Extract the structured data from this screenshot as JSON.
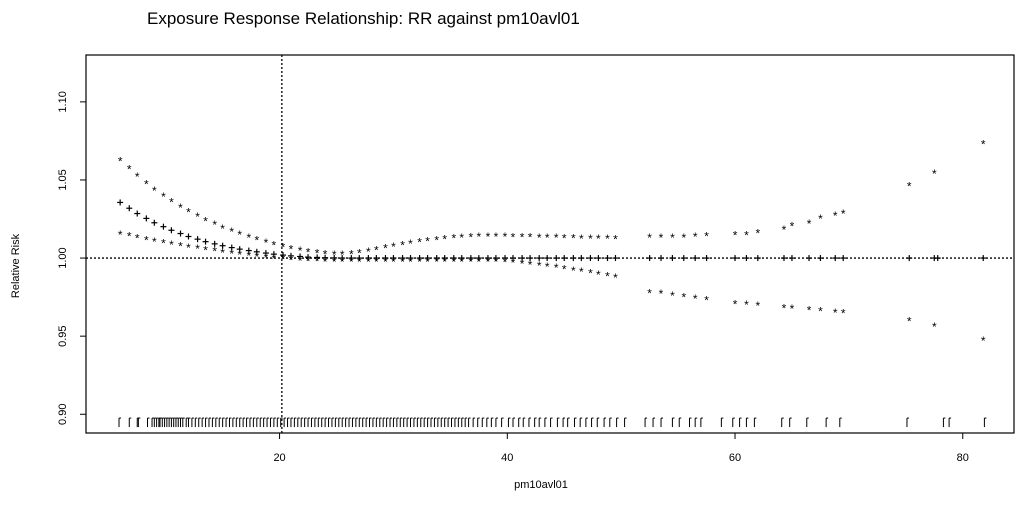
{
  "chart_data": {
    "type": "scatter",
    "title": "Exposure Response Relationship: RR against pm10avl01",
    "xlabel": "pm10avl01",
    "ylabel": "Relative Risk",
    "xlim": [
      3.0,
      84.5
    ],
    "ylim": [
      0.888,
      1.13
    ],
    "x_ticks": [
      20,
      40,
      60,
      80
    ],
    "x_tick_labels": [
      "20",
      "40",
      "60",
      "80"
    ],
    "y_ticks": [
      0.9,
      0.95,
      1.0,
      1.05,
      1.1
    ],
    "y_tick_labels": [
      "0.90",
      "0.95",
      "1.00",
      "1.05",
      "1.10"
    ],
    "grid": false,
    "legend": "none",
    "reference_lines": {
      "horizontal_y": 1.0,
      "vertical_x": 20.2
    },
    "rug_x": [
      5.9,
      6.8,
      7.5,
      7.6,
      8.4,
      8.8,
      9.0,
      9.2,
      9.4,
      9.5,
      9.7,
      9.9,
      10.1,
      10.3,
      10.5,
      10.7,
      10.9,
      11.1,
      11.3,
      11.5,
      11.8,
      12.0,
      12.3,
      12.6,
      12.9,
      13.2,
      13.5,
      13.8,
      14.1,
      14.4,
      14.7,
      15.0,
      15.3,
      15.6,
      15.9,
      16.2,
      16.5,
      16.8,
      17.1,
      17.4,
      17.7,
      18.0,
      18.3,
      18.6,
      18.9,
      19.2,
      19.5,
      19.8,
      20.1,
      20.4,
      20.7,
      21.0,
      21.3,
      21.6,
      21.9,
      22.2,
      22.5,
      22.8,
      23.1,
      23.4,
      23.7,
      24.0,
      24.3,
      24.6,
      24.9,
      25.2,
      25.5,
      25.8,
      26.1,
      26.4,
      26.7,
      27.0,
      27.3,
      27.6,
      27.9,
      28.2,
      28.5,
      28.8,
      29.1,
      29.4,
      29.7,
      30.0,
      30.3,
      30.6,
      30.9,
      31.2,
      31.5,
      31.8,
      32.1,
      32.4,
      32.7,
      33.0,
      33.3,
      33.6,
      33.9,
      34.2,
      34.5,
      34.8,
      35.1,
      35.4,
      35.7,
      36.0,
      36.3,
      36.6,
      37.0,
      37.4,
      37.8,
      38.2,
      38.6,
      39.0,
      39.5,
      40.1,
      40.5,
      41.0,
      41.4,
      41.9,
      42.4,
      42.8,
      43.3,
      43.8,
      44.4,
      44.9,
      45.3,
      45.9,
      46.4,
      46.9,
      47.4,
      47.9,
      48.5,
      49.0,
      49.6,
      50.3,
      52.1,
      52.8,
      53.5,
      54.5,
      55.1,
      56.0,
      56.5,
      57.0,
      58.8,
      59.8,
      60.4,
      61.0,
      61.7,
      64.1,
      64.8,
      66.3,
      68.0,
      69.2,
      75.1,
      78.3,
      78.8,
      81.9
    ],
    "series": [
      {
        "marker": "+",
        "x": [
          6.0,
          6.8,
          7.5,
          8.3,
          9.0,
          9.8,
          10.5,
          11.3,
          12.0,
          12.8,
          13.5,
          14.3,
          15.0,
          15.8,
          16.5,
          17.3,
          18.0,
          18.8,
          19.5,
          20.3,
          21.0,
          21.8,
          22.5,
          23.3,
          24.0,
          24.8,
          25.5,
          26.3,
          27.0,
          27.8,
          28.5,
          29.3,
          30.0,
          30.8,
          31.5,
          32.3,
          33.0,
          33.8,
          34.5,
          35.3,
          36.0,
          36.8,
          37.5,
          38.3,
          39.0,
          39.8,
          40.5,
          41.3,
          42.0,
          42.8,
          43.5,
          44.3,
          45.0,
          45.8,
          46.5,
          47.3,
          48.0,
          48.8,
          49.5,
          52.5,
          53.5,
          54.5,
          55.5,
          56.5,
          57.5,
          60.0,
          61.0,
          62.0,
          64.3,
          65.0,
          66.5,
          67.5,
          68.8,
          69.5,
          75.3,
          77.5,
          77.8,
          81.8
        ],
        "y": [
          1.0356,
          1.0319,
          1.0285,
          1.0254,
          1.0226,
          1.0201,
          1.0178,
          1.0157,
          1.0138,
          1.0121,
          1.0105,
          1.0091,
          1.0079,
          1.0067,
          1.0057,
          1.0048,
          1.004,
          1.0032,
          1.0025,
          1.0019,
          1.0014,
          1.001,
          1.0006,
          1.0004,
          1.0002,
          1.0001,
          1.0,
          1.0,
          1.0,
          1.0,
          1.0,
          1.0,
          1.0,
          1.0,
          1.0,
          1.0,
          1.0,
          1.0,
          1.0,
          1.0,
          1.0,
          1.0,
          1.0,
          1.0,
          1.0,
          1.0,
          1.0,
          1.0,
          1.0,
          1.0,
          1.0,
          1.0,
          1.0,
          1.0,
          1.0,
          1.0,
          1.0,
          1.0,
          1.0,
          1.0,
          1.0,
          1.0,
          1.0,
          1.0,
          1.0,
          1.0,
          1.0,
          1.0,
          1.0,
          1.0,
          1.0,
          1.0,
          1.0,
          1.0,
          1.0,
          1.0,
          1.0,
          1.0
        ]
      },
      {
        "marker": "*",
        "x": [
          6.0,
          6.8,
          7.5,
          8.3,
          9.0,
          9.8,
          10.5,
          11.3,
          12.0,
          12.8,
          13.5,
          14.3,
          15.0,
          15.8,
          16.5,
          17.3,
          18.0,
          18.8,
          19.5,
          20.3,
          21.0,
          21.8,
          22.5,
          23.3,
          24.0,
          24.8,
          25.5,
          26.3,
          27.0,
          27.8,
          28.5,
          29.3,
          30.0,
          30.8,
          31.5,
          32.3,
          33.0,
          33.8,
          34.5,
          35.3,
          36.0,
          36.8,
          37.5,
          38.3,
          39.0,
          39.8,
          40.5,
          41.3,
          42.0,
          42.8,
          43.5,
          44.3,
          45.0,
          45.8,
          46.5,
          47.3,
          48.0,
          48.8,
          49.5,
          52.5,
          53.5,
          54.5,
          55.5,
          56.5,
          57.5,
          60.0,
          61.0,
          62.0,
          64.3,
          65.0,
          66.5,
          67.5,
          68.8,
          69.5,
          75.3,
          77.5,
          81.8
        ],
        "y": [
          1.0625,
          1.0573,
          1.0524,
          1.0478,
          1.0436,
          1.0397,
          1.0361,
          1.0328,
          1.0297,
          1.0268,
          1.0241,
          1.0217,
          1.0194,
          1.0173,
          1.0153,
          1.0135,
          1.0118,
          1.0103,
          1.0088,
          1.0074,
          1.0061,
          1.005,
          1.0041,
          1.0034,
          1.0029,
          1.0026,
          1.0027,
          1.003,
          1.0037,
          1.0046,
          1.0056,
          1.0067,
          1.0077,
          1.0087,
          1.0096,
          1.0105,
          1.0113,
          1.012,
          1.0126,
          1.0131,
          1.0135,
          1.0138,
          1.014,
          1.0141,
          1.0141,
          1.014,
          1.0139,
          1.0138,
          1.0137,
          1.0136,
          1.0135,
          1.0134,
          1.0133,
          1.0132,
          1.013,
          1.0129,
          1.0128,
          1.0127,
          1.0126,
          1.0135,
          1.0135,
          1.0135,
          1.0135,
          1.014,
          1.0145,
          1.015,
          1.015,
          1.0165,
          1.0185,
          1.021,
          1.0225,
          1.0255,
          1.0275,
          1.029,
          1.0465,
          1.0545,
          1.0735
        ]
      },
      {
        "marker": "*",
        "x": [
          6.0,
          6.8,
          7.5,
          8.3,
          9.0,
          9.8,
          10.5,
          11.3,
          12.0,
          12.8,
          13.5,
          14.3,
          15.0,
          15.8,
          16.5,
          17.3,
          18.0,
          18.8,
          19.5,
          20.3,
          21.0,
          21.8,
          22.5,
          23.3,
          24.0,
          24.8,
          25.5,
          26.3,
          27.0,
          27.8,
          28.5,
          29.3,
          30.0,
          30.8,
          31.5,
          32.3,
          33.0,
          33.8,
          34.5,
          35.3,
          36.0,
          36.8,
          37.5,
          38.3,
          39.0,
          39.8,
          40.5,
          41.3,
          42.0,
          42.8,
          43.5,
          44.3,
          45.0,
          45.8,
          46.5,
          47.3,
          48.0,
          48.8,
          49.5,
          52.5,
          53.5,
          54.5,
          55.5,
          56.5,
          57.5,
          60.0,
          61.0,
          62.0,
          64.3,
          65.0,
          66.5,
          67.5,
          68.8,
          69.5,
          75.3,
          77.5,
          81.8
        ],
        "y": [
          1.0155,
          1.0143,
          1.0131,
          1.012,
          1.011,
          1.01,
          1.009,
          1.0081,
          1.0072,
          1.0063,
          1.0055,
          1.0047,
          1.0039,
          1.0032,
          1.0025,
          1.0018,
          1.0012,
          1.0006,
          1.0001,
          0.9996,
          0.9992,
          0.9988,
          0.9985,
          0.9983,
          0.9981,
          0.998,
          0.998,
          0.998,
          0.998,
          0.998,
          0.998,
          0.998,
          0.998,
          0.998,
          0.998,
          0.998,
          0.998,
          0.998,
          0.998,
          0.998,
          0.998,
          0.998,
          0.998,
          0.998,
          0.998,
          0.9978,
          0.9974,
          0.9969,
          0.9963,
          0.9957,
          0.995,
          0.9942,
          0.9934,
          0.9925,
          0.9916,
          0.9907,
          0.9898,
          0.9889,
          0.988,
          0.978,
          0.9775,
          0.9765,
          0.9755,
          0.9745,
          0.9735,
          0.971,
          0.9705,
          0.97,
          0.9685,
          0.968,
          0.967,
          0.9665,
          0.9655,
          0.965,
          0.96,
          0.9565,
          0.9475
        ]
      }
    ]
  }
}
